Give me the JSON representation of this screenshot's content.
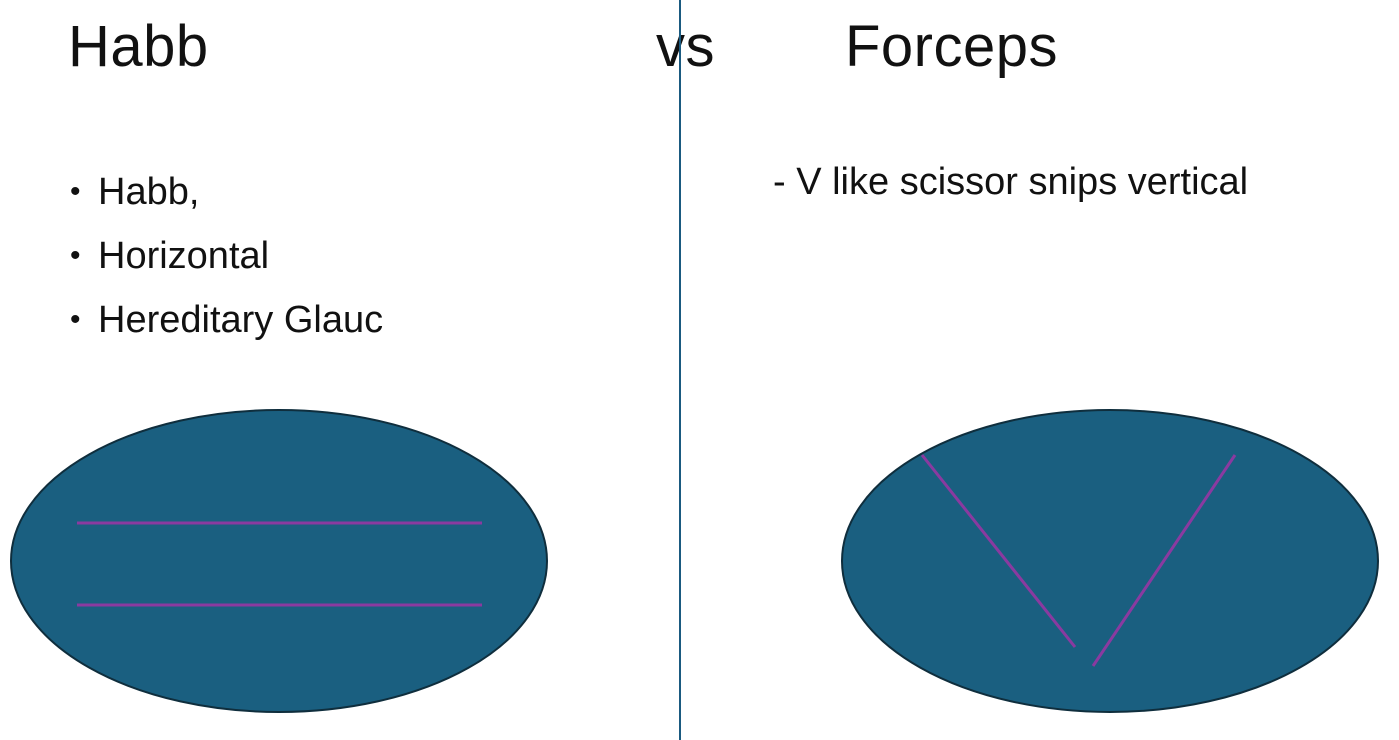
{
  "left": {
    "title": "Habb",
    "bullets": [
      "Habb,",
      "Horizontal",
      "Hereditary Glauc"
    ],
    "bullet_glyph": "•"
  },
  "center": {
    "vs": "vs"
  },
  "right": {
    "title": "Forceps",
    "note": "- V like scissor snips vertical"
  },
  "colors": {
    "ellipse_fill": "#1a5f80",
    "ellipse_stroke": "#0f2e3d",
    "line_color": "#8a3aa0",
    "divider": "#1a5a80"
  }
}
